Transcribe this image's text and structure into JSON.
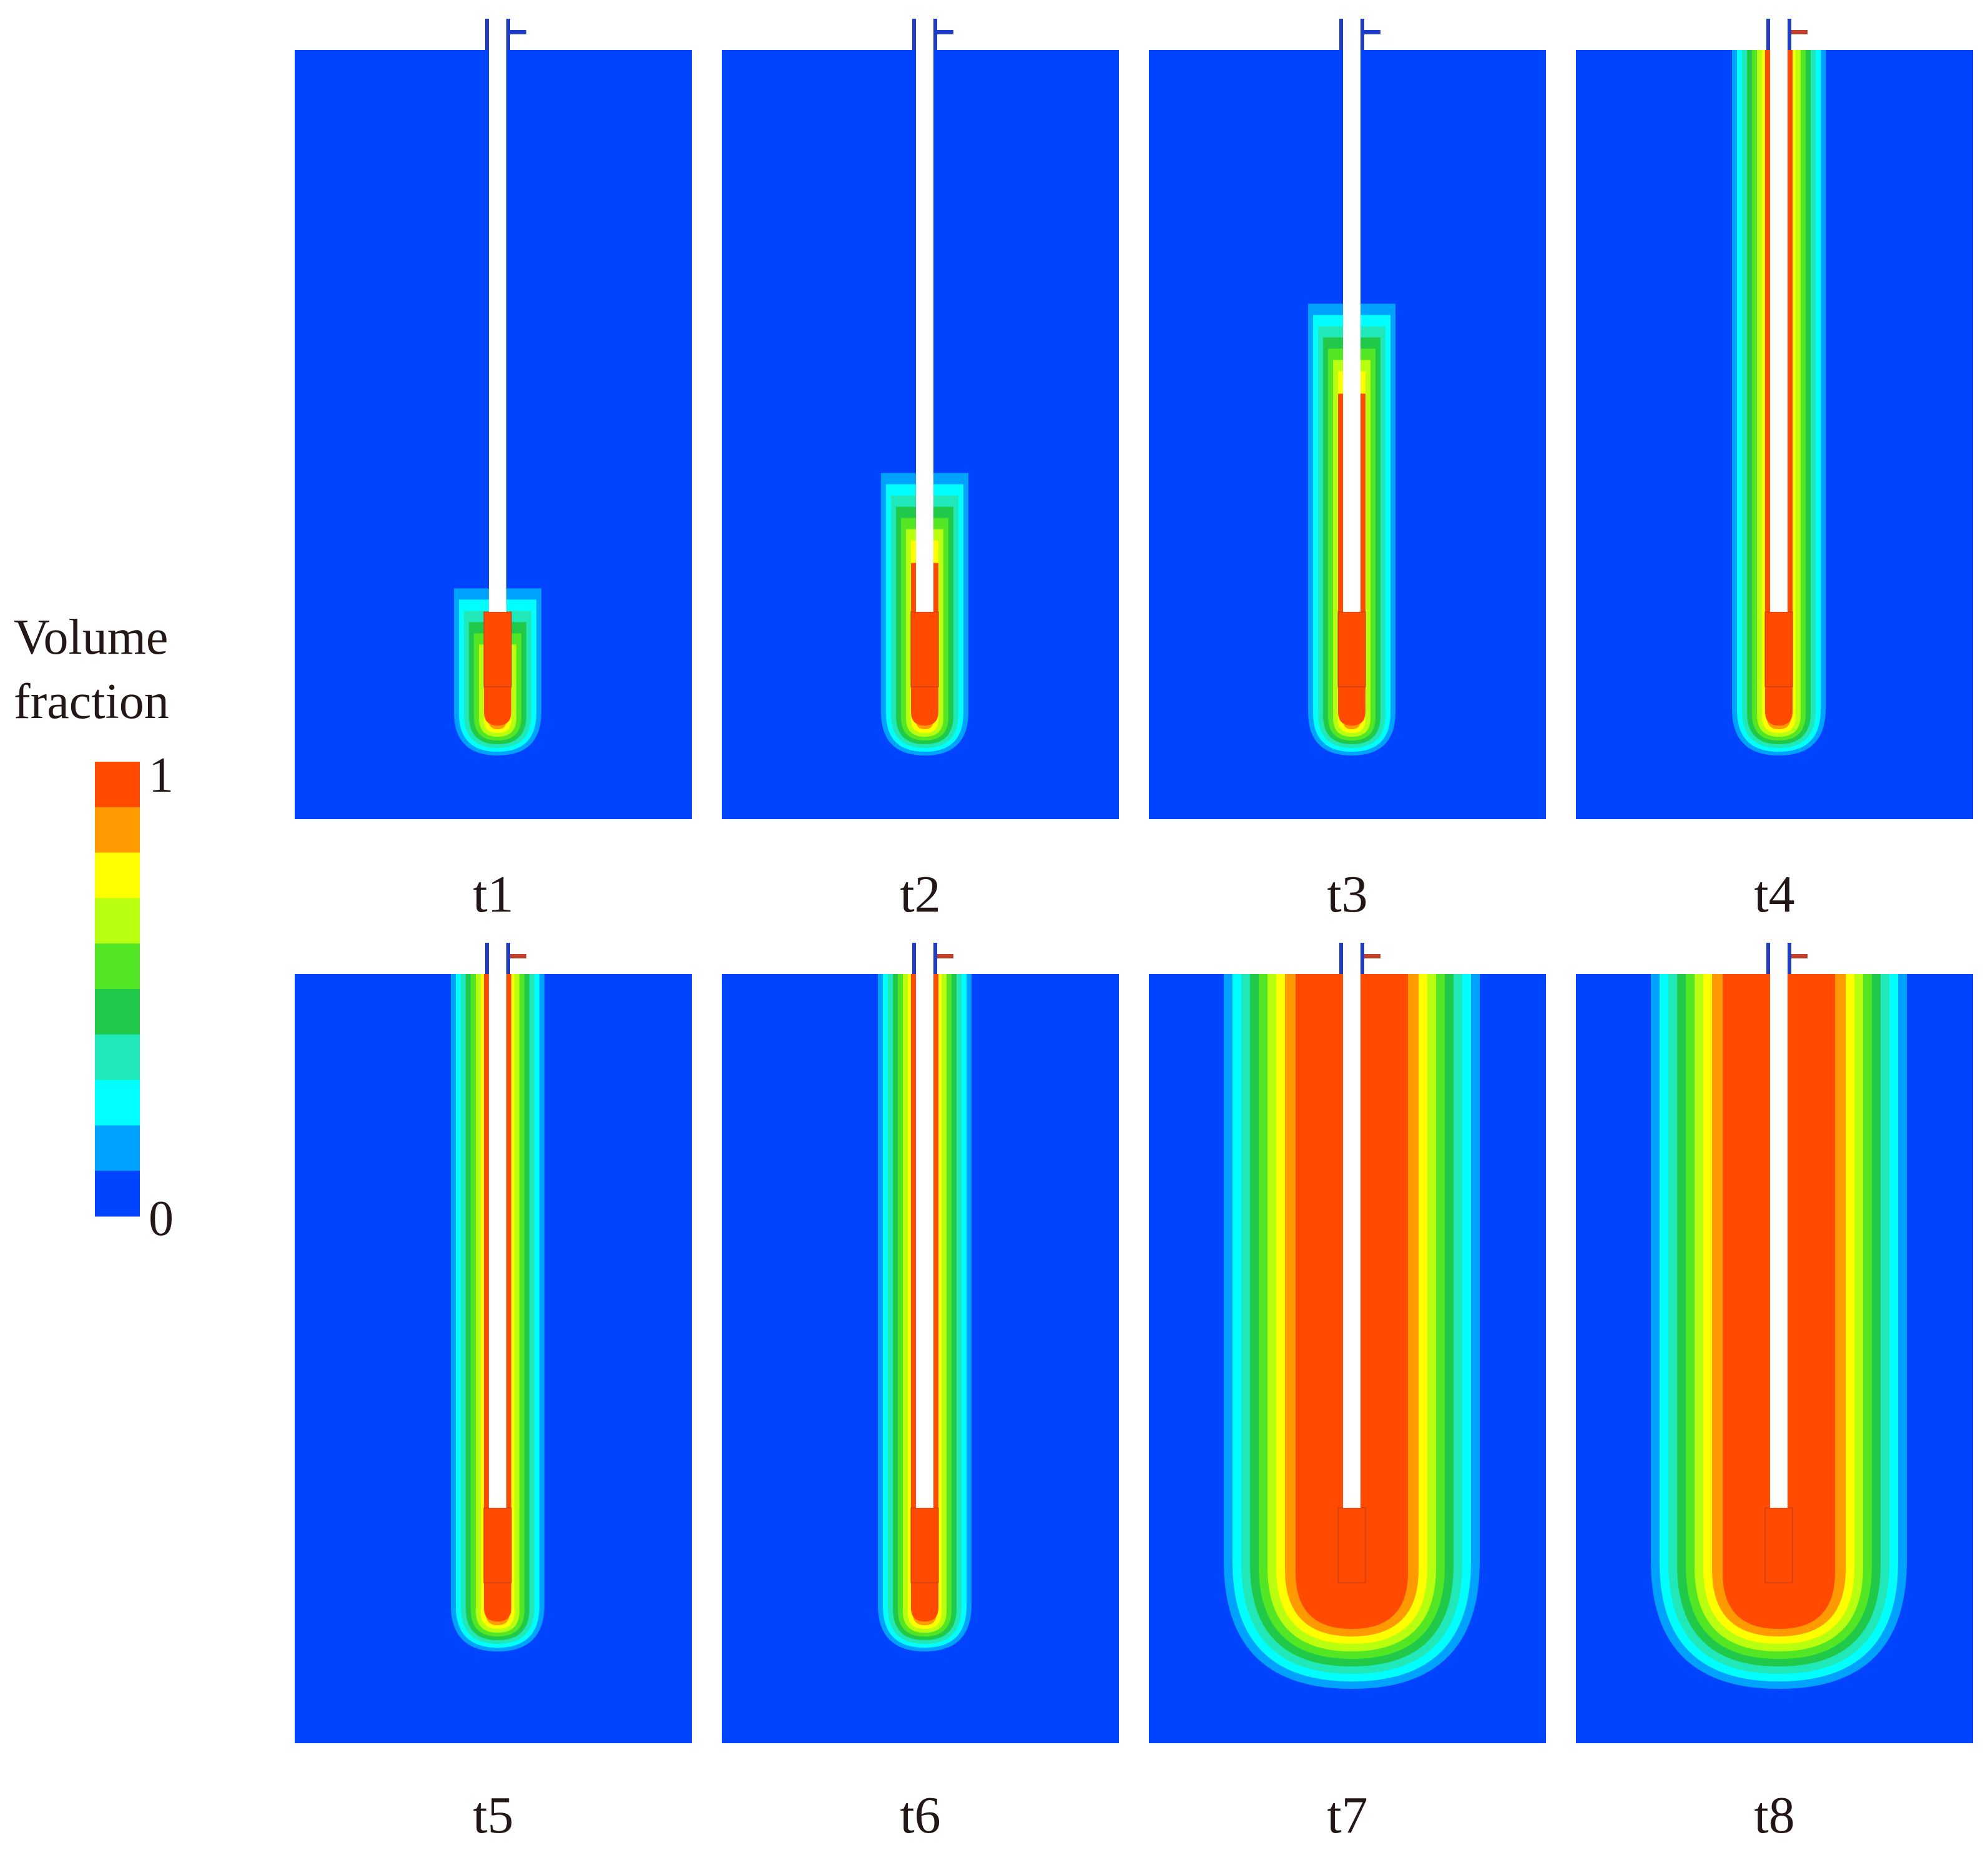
{
  "legend": {
    "title_line1": "Volume",
    "title_line2": "fraction",
    "max_label": "1",
    "min_label": "0",
    "colors": [
      "#ff4a00",
      "#ff9a00",
      "#ffff00",
      "#b8ff10",
      "#52e625",
      "#21c94b",
      "#20e8b8",
      "#00ffff",
      "#00a2ff",
      "#0044ff"
    ]
  },
  "panels": [
    {
      "label": "t1",
      "plume_top_fraction": 0.7,
      "spread": "small"
    },
    {
      "label": "t2",
      "plume_top_fraction": 0.55,
      "spread": "small"
    },
    {
      "label": "t3",
      "plume_top_fraction": 0.33,
      "spread": "small"
    },
    {
      "label": "t4",
      "plume_top_fraction": 0.0,
      "spread": "medium"
    },
    {
      "label": "t5",
      "plume_top_fraction": 0.0,
      "spread": "medium"
    },
    {
      "label": "t6",
      "plume_top_fraction": 0.0,
      "spread": "medium"
    },
    {
      "label": "t7",
      "plume_top_fraction": 0.0,
      "spread": "large"
    },
    {
      "label": "t8",
      "plume_top_fraction": 0.0,
      "spread": "large"
    }
  ],
  "colors": {
    "background_field": "#0044ff",
    "tube": "#ffffff",
    "label_text": "#231815"
  }
}
